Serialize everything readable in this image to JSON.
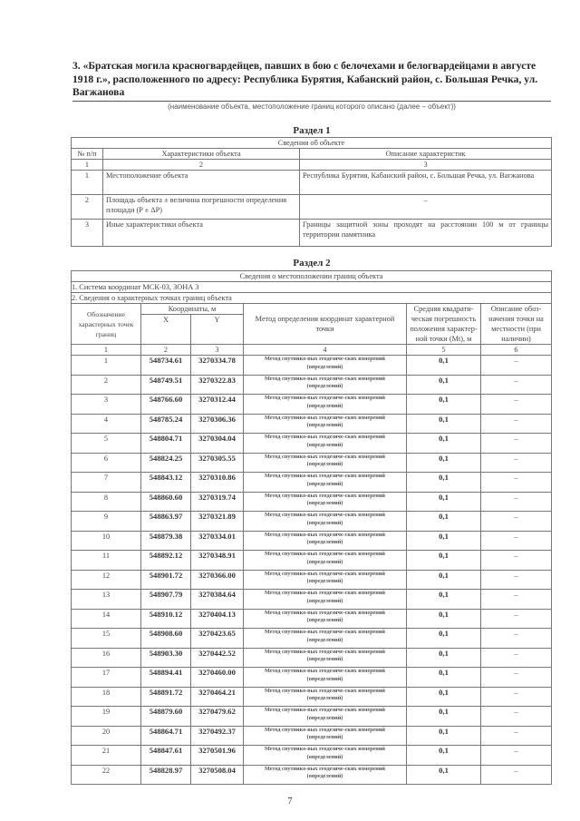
{
  "title": "3. «Братская могила красногвардейцев, павших в бою с белочехами и белогвардейцами в августе 1918 г.», расположенного по адресу: Республика Бурятия, Кабанский район, с. Большая Речка, ул. Вагжанова",
  "caption": "(наименование объекта, местоположение границ которого описано (далее – объект))",
  "section1": {
    "heading": "Раздел 1",
    "table_title": "Сведения об объекте",
    "headers": [
      "№ п/п",
      "Характеристики объекта",
      "Описание характеристик"
    ],
    "col_numbers": [
      "1",
      "2",
      "3"
    ],
    "rows": [
      {
        "n": "1",
        "name": "Местоположение объекта",
        "desc": "Республика Бурятия, Кабанский район, с. Большая Речка, ул. Вагжанова"
      },
      {
        "n": "2",
        "name": "Площадь объекта ± величина погрешности определения площади (P ± ΔP)",
        "desc": "–"
      },
      {
        "n": "3",
        "name": "Иные характеристики объекта",
        "desc": "Границы защитной зоны проходят на расстоянии 100 м от границы территории памятника"
      }
    ]
  },
  "section2": {
    "heading": "Раздел 2",
    "table_title": "Сведения о местоположении границ объекта",
    "system": "1. Система координат МСК-03, ЗОНА 3",
    "points_title": "2. Сведения о характерных точках границ объекта",
    "headers": {
      "point": "Обозначение характерных точек границ",
      "coords": "Координаты, м",
      "x": "X",
      "y": "Y",
      "method": "Метод определения координат характерной точки",
      "error": "Средняя квадрати-ческая погрешность положения характер-ной точки (Mt), м",
      "desc": "Описание обоз-начения точки на местности (при наличии)"
    },
    "col_numbers": [
      "1",
      "2",
      "3",
      "4",
      "5",
      "6"
    ],
    "method": "Метод спутнико-вых геодезиче-ских измерений (определений)",
    "rows": [
      [
        "1",
        "548734.61",
        "3270334.78",
        "0,1",
        "–"
      ],
      [
        "2",
        "548749.51",
        "3270322.83",
        "0,1",
        "–"
      ],
      [
        "3",
        "548766.60",
        "3270312.44",
        "0,1",
        "–"
      ],
      [
        "4",
        "548785.24",
        "3270306.36",
        "0,1",
        "–"
      ],
      [
        "5",
        "548804.71",
        "3270304.04",
        "0,1",
        "–"
      ],
      [
        "6",
        "548824.25",
        "3270305.55",
        "0,1",
        "–"
      ],
      [
        "7",
        "548843.12",
        "3270310.86",
        "0,1",
        "–"
      ],
      [
        "8",
        "548860.60",
        "3270319.74",
        "0,1",
        "–"
      ],
      [
        "9",
        "548863.97",
        "3270321.89",
        "0,1",
        "–"
      ],
      [
        "10",
        "548879.38",
        "3270334.01",
        "0,1",
        "–"
      ],
      [
        "11",
        "548892.12",
        "3270348.91",
        "0,1",
        "–"
      ],
      [
        "12",
        "548901.72",
        "3270366.00",
        "0,1",
        "–"
      ],
      [
        "13",
        "548907.79",
        "3270384.64",
        "0,1",
        "–"
      ],
      [
        "14",
        "548910.12",
        "3270404.13",
        "0,1",
        "–"
      ],
      [
        "15",
        "548908.60",
        "3270423.65",
        "0,1",
        "–"
      ],
      [
        "16",
        "548903.30",
        "3270442.52",
        "0,1",
        "–"
      ],
      [
        "17",
        "548894.41",
        "3270460.00",
        "0,1",
        "–"
      ],
      [
        "18",
        "548891.72",
        "3270464.21",
        "0,1",
        "–"
      ],
      [
        "19",
        "548879.60",
        "3270479.62",
        "0,1",
        "–"
      ],
      [
        "20",
        "548864.71",
        "3270492.37",
        "0,1",
        "–"
      ],
      [
        "21",
        "548847.61",
        "3270501.96",
        "0,1",
        "–"
      ],
      [
        "22",
        "548828.97",
        "3270508.04",
        "0,1",
        "–"
      ]
    ]
  },
  "page_number": "7"
}
